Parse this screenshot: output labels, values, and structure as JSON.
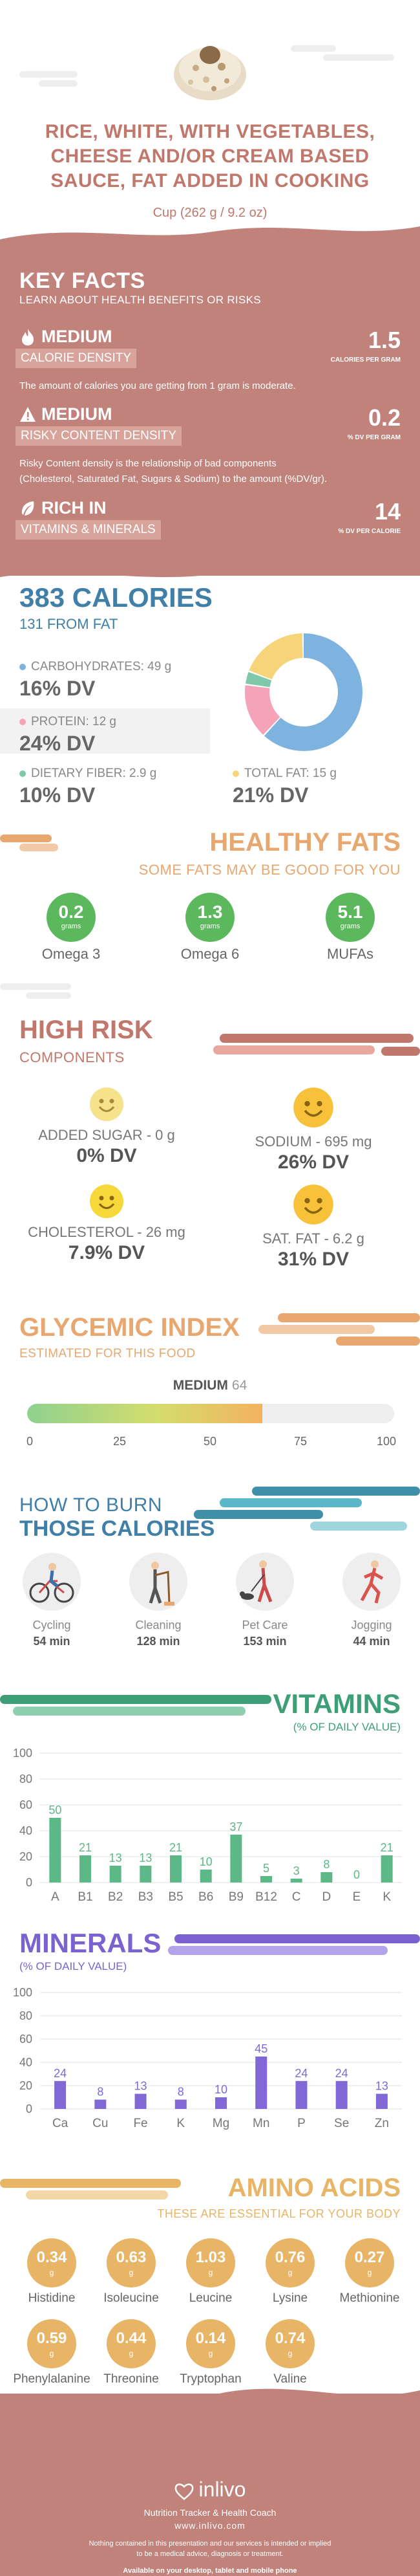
{
  "header": {
    "title_line1": "RICE, WHITE, WITH VEGETABLES,",
    "title_line2": "CHEESE AND/OR CREAM BASED",
    "title_line3": "SAUCE, FAT ADDED IN COOKING",
    "serving": "Cup (262 g / 9.2 oz)"
  },
  "key_facts": {
    "title": "KEY FACTS",
    "subtitle": "LEARN ABOUT HEALTH BENEFITS OR RISKS",
    "items": [
      {
        "level": "MEDIUM",
        "label": "CALORIE DENSITY",
        "value": "1.5",
        "unit": "CALORIES PER GRAM",
        "description": "The amount of calories you are getting from 1 gram is moderate.",
        "description2": "",
        "icon": "flame-icon"
      },
      {
        "level": "MEDIUM",
        "label": "RISKY CONTENT DENSITY",
        "value": "0.2",
        "unit": "% DV PER GRAM",
        "description": "Risky Content density is the relationship of bad components",
        "description2": "(Cholesterol, Saturated Fat, Sugars & Sodium) to the amount (%DV/gr).",
        "icon": "warning-icon"
      },
      {
        "level": "RICH IN",
        "label": "VITAMINS & MINERALS",
        "value": "14",
        "unit": "% DV PER CALORIE",
        "description": "",
        "description2": "",
        "icon": "leaf-icon"
      }
    ]
  },
  "calories": {
    "title": "383 CALORIES",
    "from_fat": "131 FROM FAT",
    "macros": [
      {
        "label": "CARBOHYDRATES: 49 g",
        "dv": "16% DV",
        "color": "#7eb3df"
      },
      {
        "label": "PROTEIN: 12 g",
        "dv": "24% DV",
        "color": "#f4a3b8"
      },
      {
        "label": "DIETARY FIBER: 2.9 g",
        "dv": "10% DV",
        "color": "#7fc8a9"
      },
      {
        "label": "TOTAL FAT: 15 g",
        "dv": "21% DV",
        "color": "#f6d57a"
      }
    ],
    "donut": [
      {
        "name": "Carbohydrates",
        "grams": 49,
        "color": "#7eb3df"
      },
      {
        "name": "Protein",
        "grams": 12,
        "color": "#f4a3b8"
      },
      {
        "name": "Dietary Fiber",
        "grams": 2.9,
        "color": "#7fc8a9"
      },
      {
        "name": "Total Fat",
        "grams": 15,
        "color": "#f6d57a"
      }
    ]
  },
  "healthy_fats": {
    "title": "HEALTHY FATS",
    "subtitle": "SOME FATS MAY BE GOOD FOR YOU",
    "items": [
      {
        "value": "0.2",
        "unit": "grams",
        "name": "Omega 3"
      },
      {
        "value": "1.3",
        "unit": "grams",
        "name": "Omega 6"
      },
      {
        "value": "5.1",
        "unit": "grams",
        "name": "MUFAs"
      }
    ]
  },
  "high_risk": {
    "title": "HIGH RISK",
    "subtitle": "COMPONENTS",
    "items": [
      {
        "label": "ADDED SUGAR - 0 g",
        "dv": "0% DV",
        "icon": "smiley-light-icon"
      },
      {
        "label": "SODIUM - 695 mg",
        "dv": "26% DV",
        "icon": "smiley-icon"
      },
      {
        "label": "CHOLESTEROL - 26 mg",
        "dv": "7.9% DV",
        "icon": "smiley-icon"
      },
      {
        "label": "SAT. FAT - 6.2 g",
        "dv": "31% DV",
        "icon": "smiley-icon"
      }
    ]
  },
  "glycemic": {
    "title": "GLYCEMIC INDEX",
    "subtitle": "ESTIMATED FOR THIS FOOD",
    "level": "MEDIUM",
    "value": "64",
    "value_num": 64,
    "max": 100,
    "ticks": [
      "0",
      "25",
      "50",
      "75",
      "100"
    ]
  },
  "burn": {
    "how": "HOW TO BURN",
    "title": "THOSE CALORIES",
    "activities": [
      {
        "name": "Cycling",
        "minutes": "54 min",
        "icon": "cycling-icon"
      },
      {
        "name": "Cleaning",
        "minutes": "128 min",
        "icon": "cleaning-icon"
      },
      {
        "name": "Pet Care",
        "minutes": "153 min",
        "icon": "pet-care-icon"
      },
      {
        "name": "Jogging",
        "minutes": "44 min",
        "icon": "jogging-icon"
      }
    ]
  },
  "vitamins": {
    "title": "VITAMINS",
    "subtitle": "(% OF DAILY VALUE)"
  },
  "minerals": {
    "title": "MINERALS",
    "subtitle": "(% OF DAILY VALUE)"
  },
  "chart_data": [
    {
      "type": "bar",
      "title": "VITAMINS",
      "subtitle": "(% OF DAILY VALUE)",
      "categories": [
        "A",
        "B1",
        "B2",
        "B3",
        "B5",
        "B6",
        "B9",
        "B12",
        "C",
        "D",
        "E",
        "K"
      ],
      "values": [
        50,
        21,
        13,
        13,
        21,
        10,
        37,
        5,
        3,
        8,
        0,
        21
      ],
      "yticks": [
        "0",
        "20",
        "40",
        "60",
        "80",
        "100"
      ],
      "ylim": [
        0,
        100
      ],
      "color": "#5cb887",
      "grid": true
    },
    {
      "type": "bar",
      "title": "MINERALS",
      "subtitle": "(% OF DAILY VALUE)",
      "categories": [
        "Ca",
        "Cu",
        "Fe",
        "K",
        "Mg",
        "Mn",
        "P",
        "Se",
        "Zn"
      ],
      "values": [
        24,
        8,
        13,
        8,
        10,
        45,
        24,
        24,
        13
      ],
      "yticks": [
        "0",
        "20",
        "40",
        "60",
        "80",
        "100"
      ],
      "ylim": [
        0,
        100
      ],
      "color": "#8069d6",
      "grid": true
    }
  ],
  "amino": {
    "title": "AMINO ACIDS",
    "subtitle": "THESE ARE ESSENTIAL FOR YOUR BODY",
    "items": [
      {
        "value": "0.34",
        "unit": "g",
        "name": "Histidine"
      },
      {
        "value": "0.63",
        "unit": "g",
        "name": "Isoleucine"
      },
      {
        "value": "1.03",
        "unit": "g",
        "name": "Leucine"
      },
      {
        "value": "0.76",
        "unit": "g",
        "name": "Lysine"
      },
      {
        "value": "0.27",
        "unit": "g",
        "name": "Methionine"
      },
      {
        "value": "0.59",
        "unit": "g",
        "name": "Phenylalanine"
      },
      {
        "value": "0.44",
        "unit": "g",
        "name": "Threonine"
      },
      {
        "value": "0.14",
        "unit": "g",
        "name": "Tryptophan"
      },
      {
        "value": "0.74",
        "unit": "g",
        "name": "Valine"
      }
    ]
  },
  "footer": {
    "brand": "inlivo",
    "tagline": "Nutrition Tracker & Health Coach",
    "url": "www.inlivo.com",
    "disclaimer1": "Nothing contained in this presentation and our services is intended or implied",
    "disclaimer2": "to be a medical advice, diagnosis or treatment.",
    "available": "Available on your desktop, tablet and mobile phone"
  },
  "colors": {
    "brand_rose": "#c0827a",
    "calorie_blue": "#3f7fa8",
    "fats_orange": "#e8a76f",
    "fat_green": "#5cb85c",
    "vitamin_green": "#3e9e77",
    "mineral_purple": "#7b62d1",
    "amino_gold": "#e8b567"
  }
}
